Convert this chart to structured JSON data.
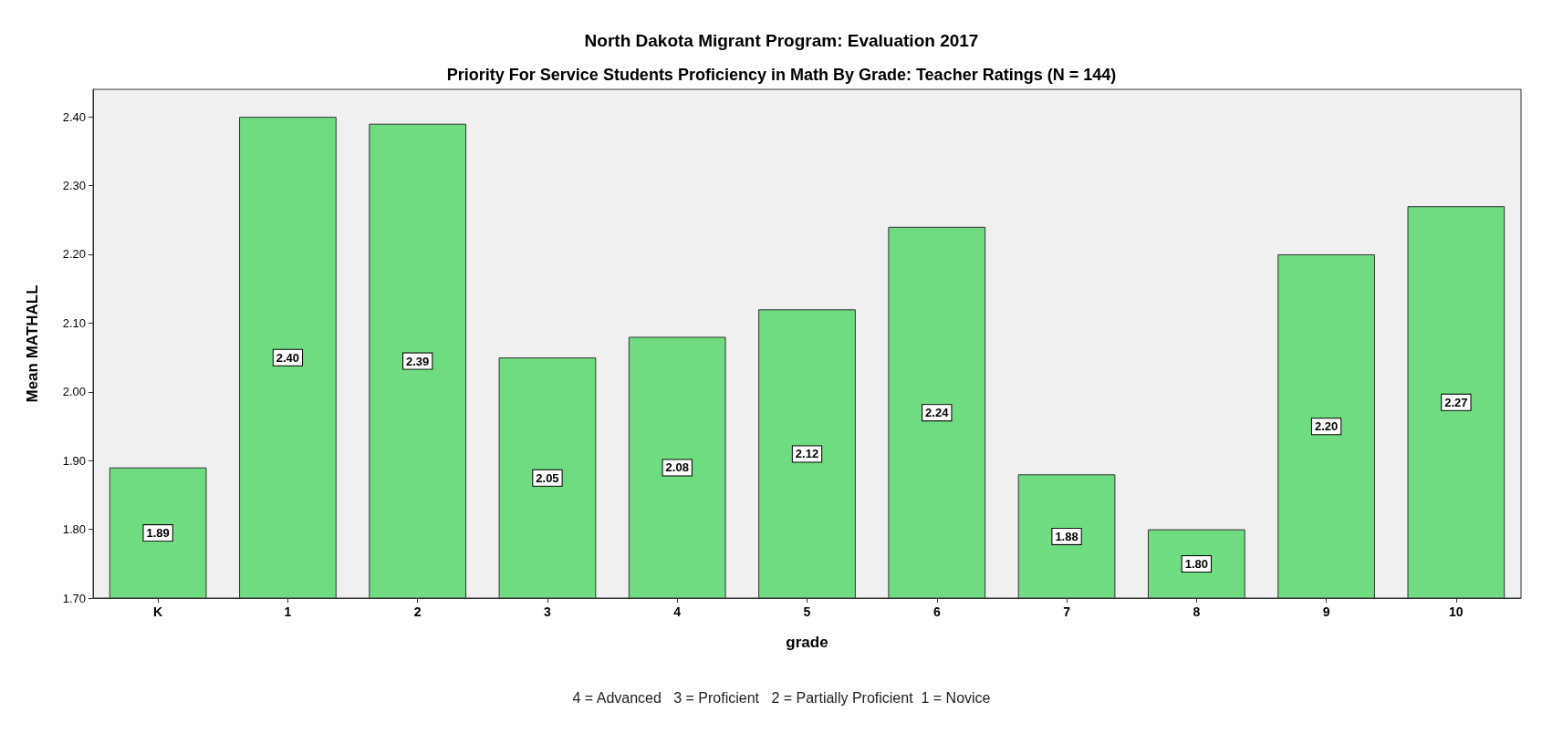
{
  "chart_data": {
    "type": "bar",
    "title": "North Dakota Migrant Program: Evaluation 2017",
    "subtitle": "Priority For Service Students Proficiency in Math By Grade: Teacher Ratings (N = 144)",
    "xlabel": "grade",
    "ylabel": "Mean MATHALL",
    "annotations": [
      "4 = Advanced   3 = Proficient   2 = Partially Proficient  1 = Novice"
    ],
    "categories": [
      "K",
      "1",
      "2",
      "3",
      "4",
      "5",
      "6",
      "7",
      "8",
      "9",
      "10"
    ],
    "values": [
      1.89,
      2.4,
      2.39,
      2.05,
      2.08,
      2.12,
      2.24,
      1.88,
      1.8,
      2.2,
      2.27
    ],
    "value_labels": [
      "1.89",
      "2.40",
      "2.39",
      "2.05",
      "2.08",
      "2.12",
      "2.24",
      "1.88",
      "1.80",
      "2.20",
      "2.27"
    ],
    "color": "#6fdc82",
    "ylim": [
      1.7,
      2.44
    ],
    "yticks": [
      {
        "value": 1.7,
        "label": "1.70"
      },
      {
        "value": 1.8,
        "label": "1.80"
      },
      {
        "value": 1.9,
        "label": "1.90"
      },
      {
        "value": 2.0,
        "label": "2.00"
      },
      {
        "value": 2.1,
        "label": "2.10"
      },
      {
        "value": 2.2,
        "label": "2.20"
      },
      {
        "value": 2.3,
        "label": "2.30"
      },
      {
        "value": 2.4,
        "label": "2.40"
      }
    ],
    "grid": false
  }
}
